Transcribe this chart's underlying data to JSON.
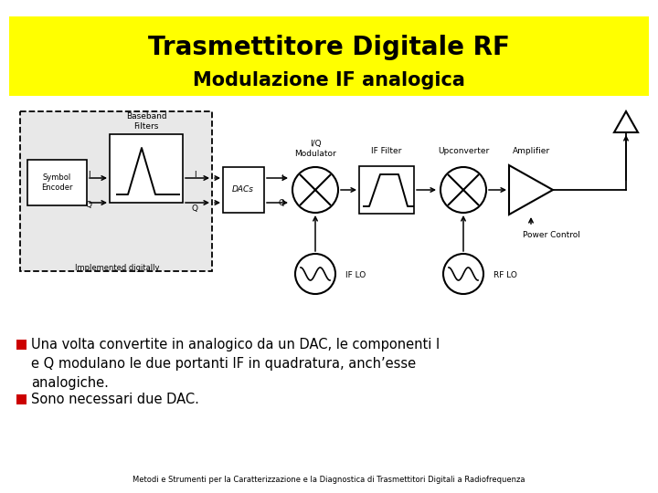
{
  "title": "Trasmettitore Digitale RF",
  "subtitle": "Modulazione IF analogica",
  "title_bg": "#FFFF00",
  "bg_color": "#FFFFFF",
  "bullet_color": "#CC0000",
  "bullet1": "Una volta convertite in analogico da un DAC, le componenti I\ne Q modulano le due portanti IF in quadratura, anch’esse\nanalogiche.",
  "bullet2": "Sono necessari due DAC.",
  "footer": "Metodi e Strumenti per la Caratterizzazione e la Diagnostica di Trasmettitori Digitali a Radiofrequenza",
  "dashed_box_bg": "#E8E8E8"
}
